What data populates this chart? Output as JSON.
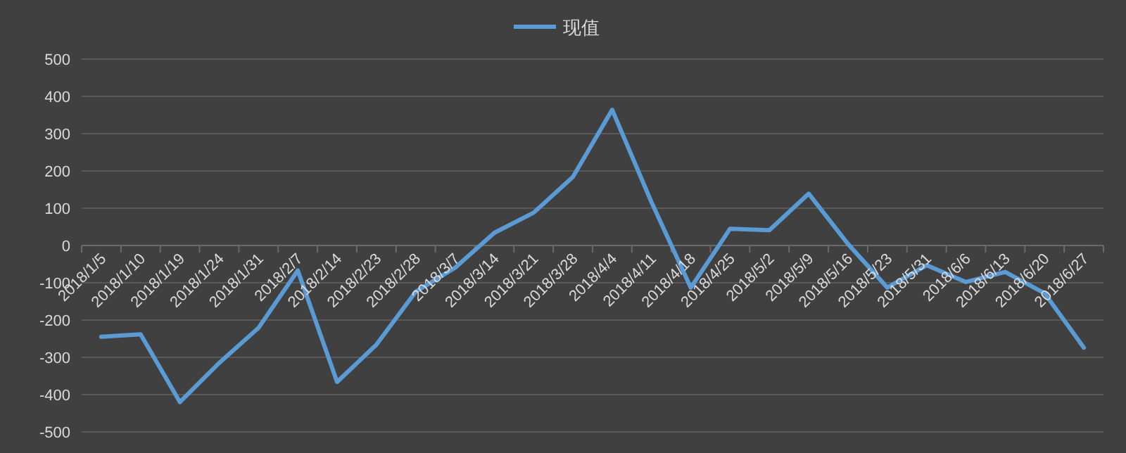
{
  "chart_data": {
    "type": "line",
    "categories": [
      "2018/1/5",
      "2018/1/10",
      "2018/1/19",
      "2018/1/24",
      "2018/1/31",
      "2018/2/7",
      "2018/2/14",
      "2018/2/23",
      "2018/2/28",
      "2018/3/7",
      "2018/3/14",
      "2018/3/21",
      "2018/3/28",
      "2018/4/4",
      "2018/4/11",
      "2018/4/18",
      "2018/4/25",
      "2018/5/2",
      "2018/5/9",
      "2018/5/16",
      "2018/5/23",
      "2018/5/31",
      "2018/6/6",
      "2018/6/13",
      "2018/6/20",
      "2018/6/27"
    ],
    "series": [
      {
        "name": "现值",
        "color": "#5b9bd5",
        "values": [
          -245,
          -238,
          -420,
          -315,
          -221,
          -67,
          -366,
          -266,
          -124,
          -60,
          34,
          88,
          184,
          364,
          116,
          -113,
          45,
          41,
          139,
          4,
          -113,
          -53,
          -98,
          -71,
          -128,
          -274
        ]
      }
    ],
    "ylim": [
      -500,
      500
    ],
    "yticks": [
      -500,
      -400,
      -300,
      -200,
      -100,
      0,
      100,
      200,
      300,
      400,
      500
    ],
    "grid": "y",
    "legend": "top"
  }
}
